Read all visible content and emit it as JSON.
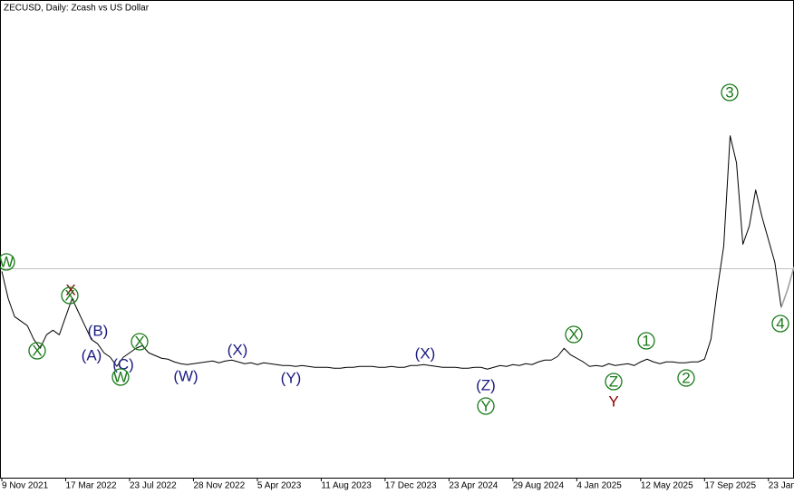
{
  "chart_data": {
    "type": "line",
    "title": "ZECUSD, Daily:  Zcash vs US Dollar",
    "xlim": [
      0,
      124
    ],
    "ylim": [
      -280,
      1040
    ],
    "xticks": [
      {
        "value": 0,
        "label": "9 Nov 2021"
      },
      {
        "value": 10,
        "label": "17 Mar 2022"
      },
      {
        "value": 20,
        "label": "23 Jul 2022"
      },
      {
        "value": 30,
        "label": "28 Nov 2022"
      },
      {
        "value": 40,
        "label": "5 Apr 2023"
      },
      {
        "value": 50,
        "label": "11 Aug 2023"
      },
      {
        "value": 60,
        "label": "17 Dec 2023"
      },
      {
        "value": 70,
        "label": "23 Apr 2024"
      },
      {
        "value": 80,
        "label": "29 Aug 2024"
      },
      {
        "value": 90,
        "label": "4 Jan 2025"
      },
      {
        "value": 100,
        "label": "12 May 2025"
      },
      {
        "value": 110,
        "label": "17 Sep 2025"
      },
      {
        "value": 120,
        "label": "23 Jan"
      }
    ],
    "level": 297.5,
    "level_color": "#c0c0c0",
    "series": [
      {
        "color": "#000000",
        "values": [
          290,
          215,
          165,
          152.5,
          140,
          102.5,
          77.5,
          115,
          127.5,
          115,
          165,
          215,
          177.5,
          140,
          102.5,
          90,
          65,
          52.5,
          27.5,
          52.5,
          65,
          77.5,
          85,
          65,
          57.5,
          50,
          47.5,
          40,
          35,
          32.5,
          35,
          37.5,
          40,
          42.5,
          37.5,
          42.5,
          45,
          40,
          35,
          37.5,
          32.5,
          37.5,
          35,
          32.5,
          30,
          30,
          27.5,
          30,
          27.5,
          25,
          25,
          25,
          22.5,
          22.5,
          25,
          25,
          27.5,
          27.5,
          27.5,
          25,
          25,
          27.5,
          25,
          25,
          30,
          30,
          32.5,
          30,
          27.5,
          25,
          25,
          25,
          22.5,
          22.5,
          25,
          25,
          20,
          25,
          30,
          27.5,
          32.5,
          30,
          35,
          32.5,
          40,
          45,
          45,
          55,
          77.5,
          60,
          50,
          40,
          27.5,
          30,
          27.5,
          35,
          30,
          32.5,
          35,
          30,
          40,
          47.5,
          40,
          35,
          40,
          40,
          37.5,
          37.5,
          40,
          40,
          47.5,
          102.5,
          240,
          360,
          665,
          590,
          365,
          415,
          515,
          440,
          377.5,
          315,
          190,
          null,
          null
        ]
      },
      {
        "color": "#a0a0a0",
        "values": [
          null,
          null,
          null,
          null,
          null,
          null,
          null,
          null,
          null,
          null,
          null,
          null,
          null,
          null,
          null,
          null,
          null,
          null,
          null,
          null,
          null,
          null,
          null,
          null,
          null,
          null,
          null,
          null,
          null,
          null,
          null,
          null,
          null,
          null,
          null,
          null,
          null,
          null,
          null,
          null,
          null,
          null,
          null,
          null,
          null,
          null,
          null,
          null,
          null,
          null,
          null,
          null,
          null,
          null,
          null,
          null,
          null,
          null,
          null,
          null,
          null,
          null,
          null,
          null,
          null,
          null,
          null,
          null,
          null,
          null,
          null,
          null,
          null,
          null,
          null,
          null,
          null,
          null,
          null,
          null,
          null,
          null,
          null,
          null,
          null,
          null,
          null,
          null,
          null,
          null,
          null,
          null,
          null,
          null,
          null,
          null,
          null,
          null,
          null,
          null,
          null,
          null,
          null,
          null,
          null,
          null,
          null,
          null,
          null,
          null,
          null,
          null,
          null,
          null,
          null,
          null,
          null,
          null,
          null,
          null,
          null,
          null,
          190,
          240,
          302.5
        ]
      }
    ],
    "annotations": [
      {
        "text": "W",
        "color": "#1a7a1a",
        "circled": true
      },
      {
        "text": "X",
        "color": "#1a7a1a",
        "circled": true
      },
      {
        "text": "X",
        "color": "#8b0000",
        "circled": false
      },
      {
        "text": "X",
        "color": "#1a7a1a",
        "circled": true
      },
      {
        "text": "(B)",
        "color": "#1a1a80",
        "circled": false
      },
      {
        "text": "(A)",
        "color": "#1a1a80",
        "circled": false
      },
      {
        "text": "(C)",
        "color": "#1a1a80",
        "circled": false
      },
      {
        "text": "W",
        "color": "#1a7a1a",
        "circled": true
      },
      {
        "text": "X",
        "color": "#1a7a1a",
        "circled": true
      },
      {
        "text": "(W)",
        "color": "#1a1a80",
        "circled": false
      },
      {
        "text": "(X)",
        "color": "#1a1a80",
        "circled": false
      },
      {
        "text": "(Y)",
        "color": "#1a1a80",
        "circled": false
      },
      {
        "text": "(X)",
        "color": "#1a1a80",
        "circled": false
      },
      {
        "text": "(Z)",
        "color": "#1a1a80",
        "circled": false
      },
      {
        "text": "Y",
        "color": "#1a7a1a",
        "circled": true
      },
      {
        "text": "X",
        "color": "#1a7a1a",
        "circled": true
      },
      {
        "text": "1",
        "color": "#1a7a1a",
        "circled": true
      },
      {
        "text": "Z",
        "color": "#1a7a1a",
        "circled": true
      },
      {
        "text": "Y",
        "color": "#8b0000",
        "circled": false
      },
      {
        "text": "2",
        "color": "#1a7a1a",
        "circled": true
      },
      {
        "text": "3",
        "color": "#1a7a1a",
        "circled": true
      },
      {
        "text": "4",
        "color": "#1a7a1a",
        "circled": true
      }
    ]
  }
}
